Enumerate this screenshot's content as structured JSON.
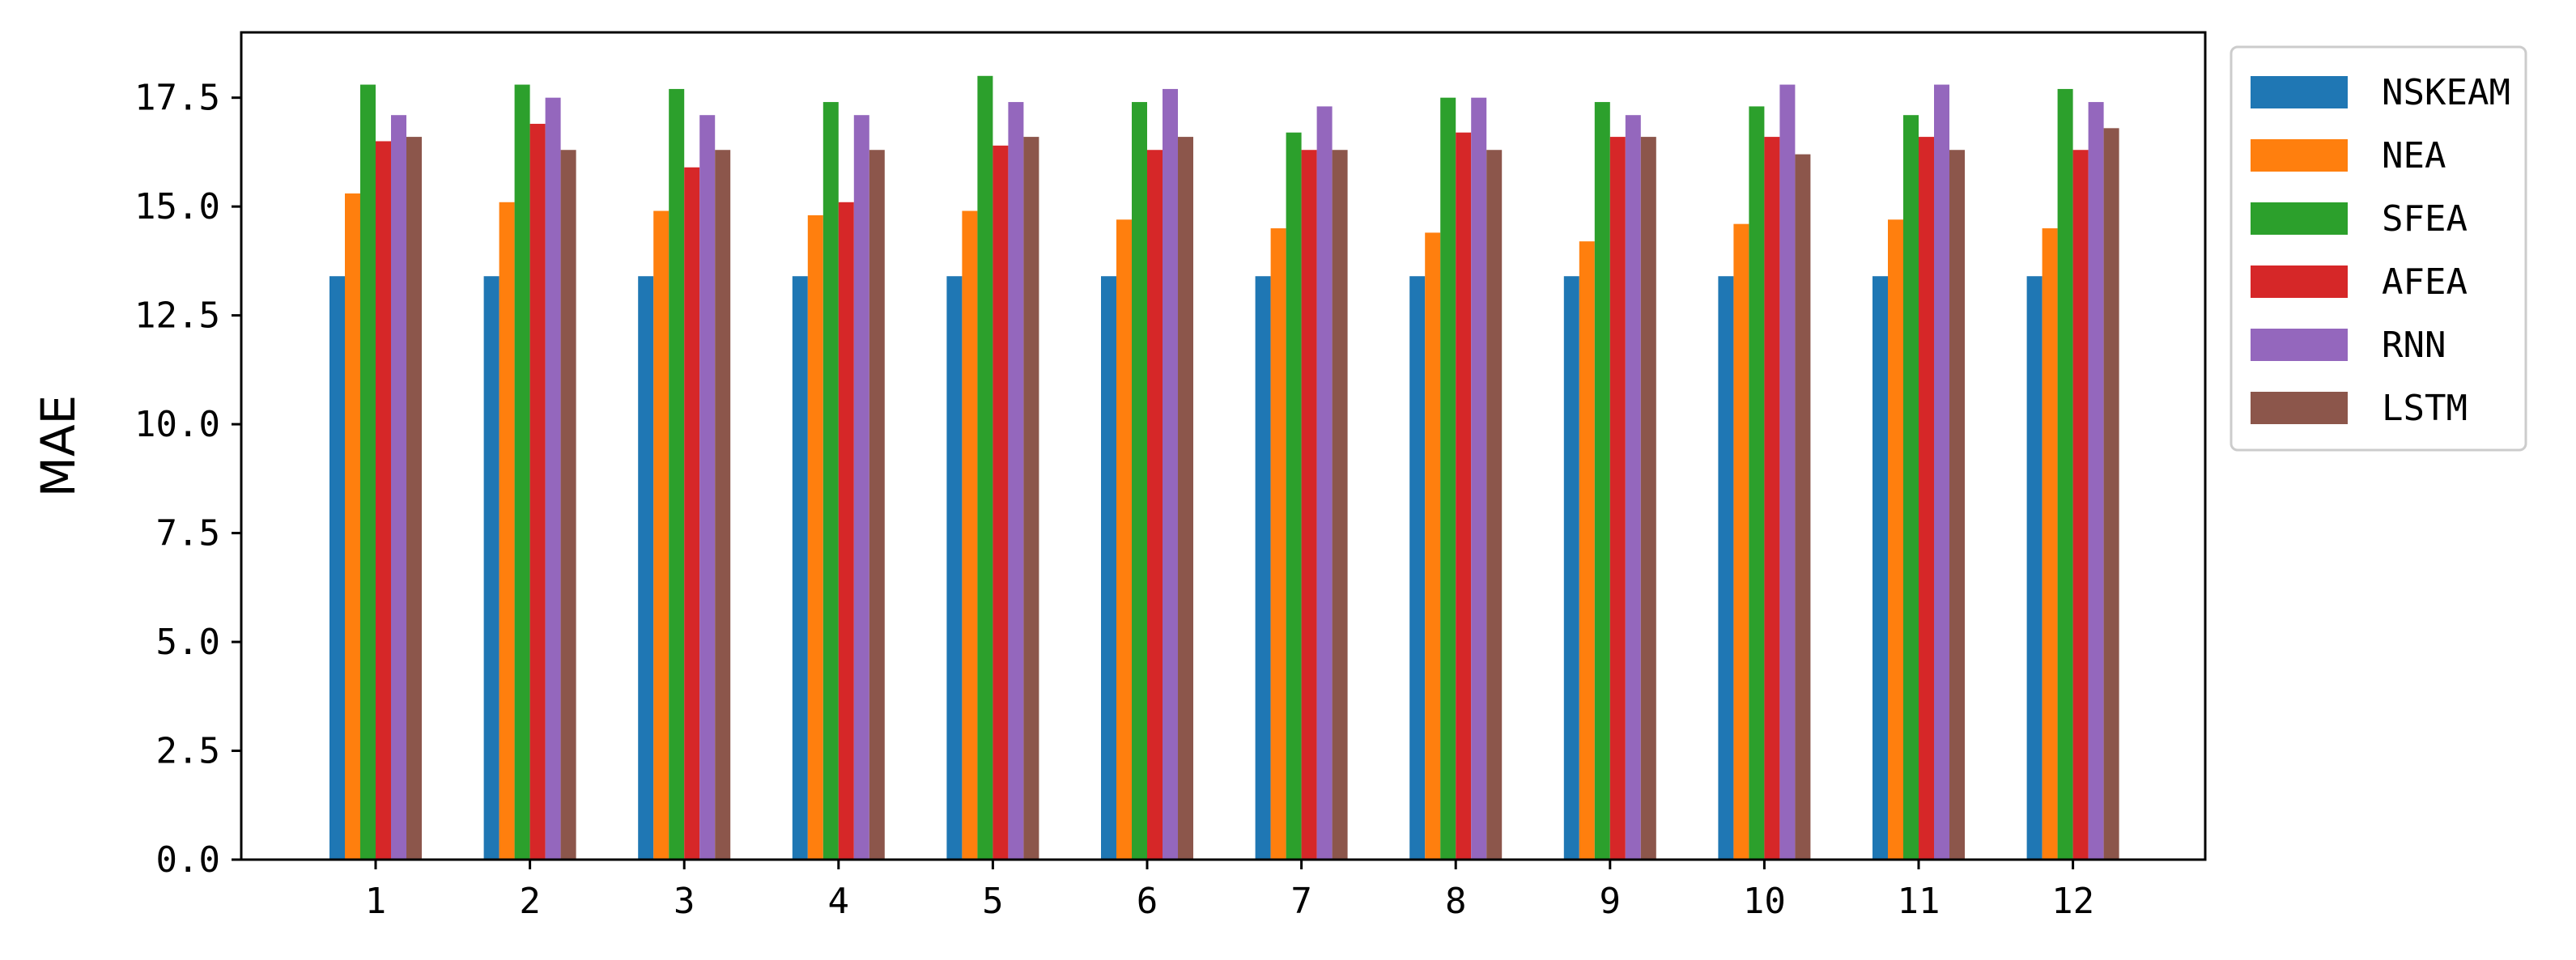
{
  "chart_data": {
    "type": "bar",
    "title": "",
    "xlabel": "",
    "ylabel": "MAE",
    "ylim": [
      0,
      19
    ],
    "yticks": [
      "0.0",
      "2.5",
      "5.0",
      "7.5",
      "10.0",
      "12.5",
      "15.0",
      "17.5"
    ],
    "categories": [
      "1",
      "2",
      "3",
      "4",
      "5",
      "6",
      "7",
      "8",
      "9",
      "10",
      "11",
      "12"
    ],
    "legend_position": "outside-top-right",
    "grid": false,
    "series": [
      {
        "name": "NSKEAM",
        "color": "#1f77b4",
        "values": [
          13.4,
          13.4,
          13.4,
          13.4,
          13.4,
          13.4,
          13.4,
          13.4,
          13.4,
          13.4,
          13.4,
          13.4
        ]
      },
      {
        "name": "NEA",
        "color": "#ff7f0e",
        "values": [
          15.3,
          15.1,
          14.9,
          14.8,
          14.9,
          14.7,
          14.5,
          14.4,
          14.2,
          14.6,
          14.7,
          14.5
        ]
      },
      {
        "name": "SFEA",
        "color": "#2ca02c",
        "values": [
          17.8,
          17.8,
          17.7,
          17.4,
          18.0,
          17.4,
          16.7,
          17.5,
          17.4,
          17.3,
          17.1,
          17.7
        ]
      },
      {
        "name": "AFEA",
        "color": "#d62728",
        "values": [
          16.5,
          16.9,
          15.9,
          15.1,
          16.4,
          16.3,
          16.3,
          16.7,
          16.6,
          16.6,
          16.6,
          16.3
        ]
      },
      {
        "name": "RNN",
        "color": "#9467bd",
        "values": [
          17.1,
          17.5,
          17.1,
          17.1,
          17.4,
          17.7,
          17.3,
          17.5,
          17.1,
          17.8,
          17.8,
          17.4
        ]
      },
      {
        "name": "LSTM",
        "color": "#8c564b",
        "values": [
          16.6,
          16.3,
          16.3,
          16.3,
          16.6,
          16.6,
          16.3,
          16.3,
          16.6,
          16.2,
          16.3,
          16.8
        ]
      }
    ]
  }
}
